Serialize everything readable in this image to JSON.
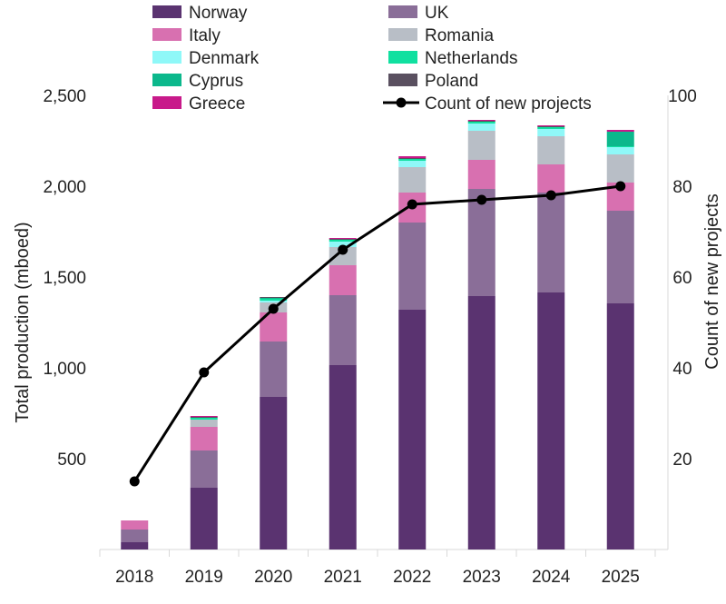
{
  "chart_data": {
    "type": "bar",
    "stacked": true,
    "categories": [
      "2018",
      "2019",
      "2020",
      "2021",
      "2022",
      "2023",
      "2024",
      "2025"
    ],
    "ylabel": "Total production (mboed)",
    "y2label": "Count of new projects",
    "ylim": [
      0,
      2500
    ],
    "y2lim": [
      0,
      100
    ],
    "yticks": [
      "500",
      "1,000",
      "1,500",
      "2,000",
      "2,500"
    ],
    "y2ticks": [
      "20",
      "40",
      "60",
      "80",
      "100"
    ],
    "grid": false,
    "legend_position": "top",
    "series": [
      {
        "name": "Norway",
        "color": "#5a3370",
        "values": [
          40,
          340,
          840,
          1015,
          1320,
          1395,
          1415,
          1355
        ]
      },
      {
        "name": "UK",
        "color": "#8a6e98",
        "values": [
          70,
          205,
          305,
          385,
          480,
          590,
          550,
          510
        ]
      },
      {
        "name": "Italy",
        "color": "#d870b0",
        "values": [
          50,
          130,
          160,
          165,
          165,
          160,
          155,
          155
        ]
      },
      {
        "name": "Romania",
        "color": "#b8bec6",
        "values": [
          0,
          40,
          55,
          100,
          140,
          160,
          155,
          155
        ]
      },
      {
        "name": "Denmark",
        "color": "#8ff8f8",
        "values": [
          0,
          0,
          10,
          30,
          35,
          40,
          40,
          40
        ]
      },
      {
        "name": "Netherlands",
        "color": "#10e0a0",
        "values": [
          0,
          10,
          10,
          10,
          10,
          10,
          10,
          5
        ]
      },
      {
        "name": "Cyprus",
        "color": "#0cb88c",
        "values": [
          0,
          0,
          5,
          0,
          0,
          0,
          0,
          80
        ]
      },
      {
        "name": "Poland",
        "color": "#5a5060",
        "values": [
          0,
          5,
          5,
          5,
          5,
          5,
          5,
          0
        ]
      },
      {
        "name": "Greece",
        "color": "#c81a8a",
        "values": [
          0,
          5,
          0,
          5,
          10,
          5,
          5,
          10
        ]
      }
    ],
    "line_series": {
      "name": "Count of new projects",
      "color": "#000000",
      "axis": "right",
      "values": [
        15,
        39,
        53,
        66,
        76,
        77,
        78,
        80
      ]
    }
  }
}
